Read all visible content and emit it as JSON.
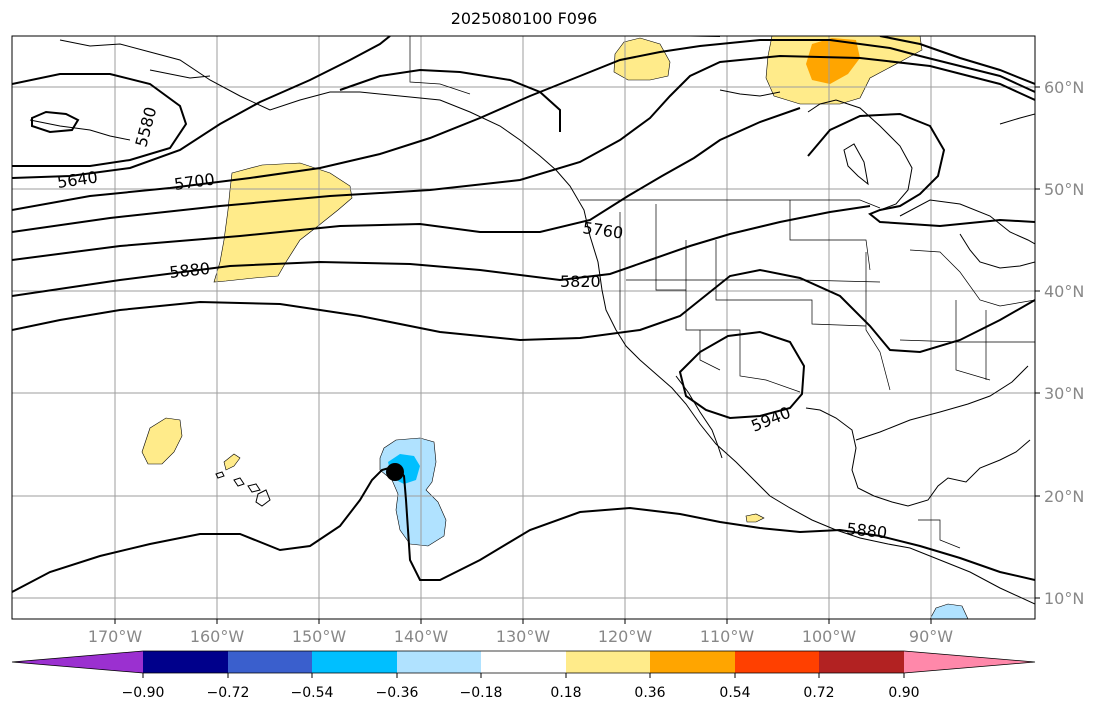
{
  "title": "2025080100 F096",
  "map": {
    "longitude_labels": [
      "170°W",
      "160°W",
      "150°W",
      "140°W",
      "130°W",
      "120°W",
      "110°W",
      "100°W",
      "90°W"
    ],
    "latitude_labels": [
      "60°N",
      "50°N",
      "40°N",
      "30°N",
      "20°N",
      "10°N"
    ],
    "contour_labels": [
      "5580",
      "5640",
      "5700",
      "5880",
      "5760",
      "5820",
      "5940",
      "5880"
    ],
    "storm_marker": "storm-center"
  },
  "colorbar": {
    "tick_labels": [
      "−0.90",
      "−0.72",
      "−0.54",
      "−0.36",
      "−0.18",
      "0.18",
      "0.36",
      "0.54",
      "0.72",
      "0.90"
    ],
    "colors": [
      "#9b30d0",
      "#00008b",
      "#3a5fcd",
      "#00bfff",
      "#b0e2ff",
      "#ffffff",
      "#ffeb8a",
      "#ffa500",
      "#ff4000",
      "#b22222",
      "#ff88aa"
    ]
  }
}
